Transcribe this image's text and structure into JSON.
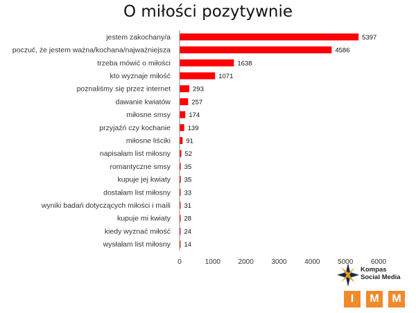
{
  "chart_data": {
    "type": "bar",
    "orientation": "horizontal",
    "title": "O miłości pozytywnie",
    "categories": [
      "jestem zakochany/a",
      "poczuć, że jestem ważna/kochana/najważniejsza",
      "trzeba mówić o miłości",
      "kto wyznaje miłość",
      "poznaliśmy się przez internet",
      "dawanie kwiatów",
      "miłosne smsy",
      "przyjaźń czy kochanie",
      "miłosne liściki",
      "napisałam list miłosny",
      "romantyczne smsy",
      "kupuje jej kwiaty",
      "dostałam list miłosny",
      "wyniki badań dotyczących miłości i maili",
      "kupuje mi kwiaty",
      "kiedy wyznać miłość",
      "wysłałam list miłosny"
    ],
    "values": [
      5397,
      4586,
      1638,
      1071,
      293,
      257,
      174,
      139,
      91,
      52,
      35,
      35,
      33,
      31,
      28,
      24,
      14
    ],
    "xlim": [
      0,
      6000
    ],
    "xticks": [
      0,
      1000,
      2000,
      3000,
      4000,
      5000,
      6000
    ],
    "xlabel": "",
    "ylabel": "",
    "grid": false,
    "legend": "none",
    "bar_color": "#ff0000"
  },
  "logo": {
    "name_line1": "Kompas",
    "name_line2": "Social Media",
    "letters": [
      "I",
      "M",
      "M"
    ],
    "icon": "compass-star-icon",
    "accent": "#f08a2a"
  }
}
